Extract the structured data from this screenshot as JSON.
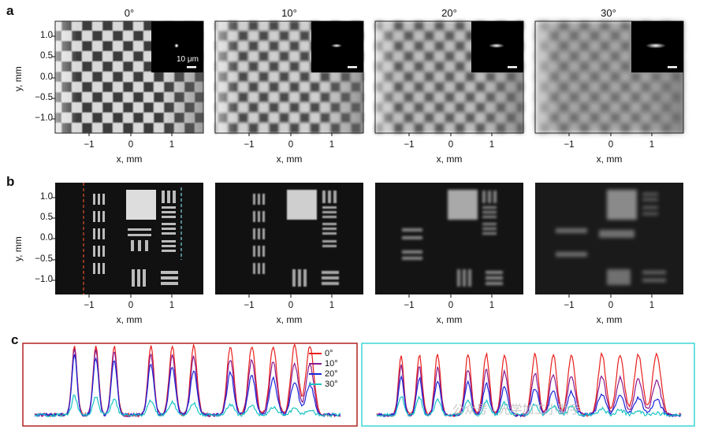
{
  "panels": {
    "a": {
      "label": "a",
      "ylabel": "y, mm",
      "xlabel": "x, mm"
    },
    "b": {
      "label": "b",
      "ylabel": "y, mm",
      "xlabel": "x, mm"
    },
    "c": {
      "label": "c"
    }
  },
  "angles": [
    "0°",
    "10°",
    "20°",
    "30°"
  ],
  "x_ticks": [
    "−1",
    "0",
    "1"
  ],
  "y_ticks": [
    "1.0",
    "0.5",
    "0.0",
    "−0.5",
    "−1.0"
  ],
  "inset_scale_label": "10 μm",
  "chart_data": {
    "type": "line",
    "legend": [
      "0°",
      "10°",
      "20°",
      "30°"
    ],
    "series_colors": {
      "0°": "#e8201c",
      "10°": "#8b1a8e",
      "20°": "#1a26d8",
      "30°": "#19c4c4"
    },
    "left_box_color": "#b22222",
    "right_box_color": "#3fd6d6",
    "legend_placement": "top-right of left plot"
  },
  "colors": {
    "left_box": "#b22222",
    "right_box": "#3fd6d6",
    "dashed_red": "#e0502a",
    "dashed_cyan": "#7fd6e0"
  },
  "watermark": "公众号 · 光学加工小助手"
}
